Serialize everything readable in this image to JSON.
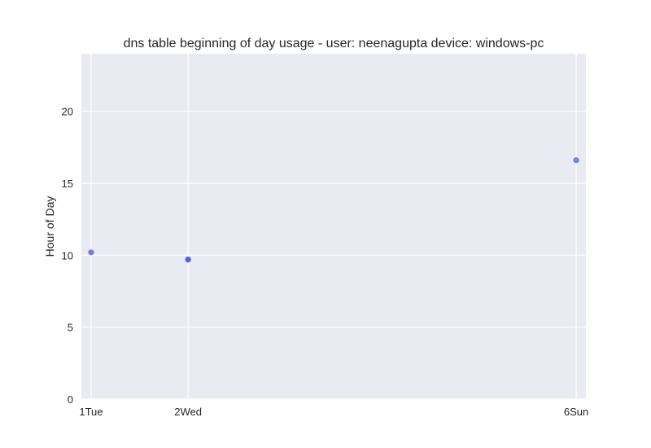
{
  "chart_data": {
    "type": "scatter",
    "title": "dns table beginning of day usage -  user: neenagupta device: windows-pc",
    "xlabel": "",
    "ylabel": "Hour of Day",
    "categories": [
      "1Tue",
      "2Wed",
      "6Sun"
    ],
    "x_positions": [
      1,
      2,
      6
    ],
    "xlim": [
      0.9,
      6.1
    ],
    "ylim": [
      0,
      24
    ],
    "yticks": [
      0,
      5,
      10,
      15,
      20
    ],
    "points": [
      {
        "x": 1,
        "label": "1Tue",
        "y": 10.2
      },
      {
        "x": 2,
        "label": "2Wed",
        "y": 9.7
      },
      {
        "x": 2,
        "label": "2Wed",
        "y": 9.7
      },
      {
        "x": 6,
        "label": "6Sun",
        "y": 16.6
      }
    ],
    "grid": true,
    "colors": {
      "background": "#eaeaf2",
      "point": "#4b57e6",
      "grid": "#ffffff"
    }
  }
}
